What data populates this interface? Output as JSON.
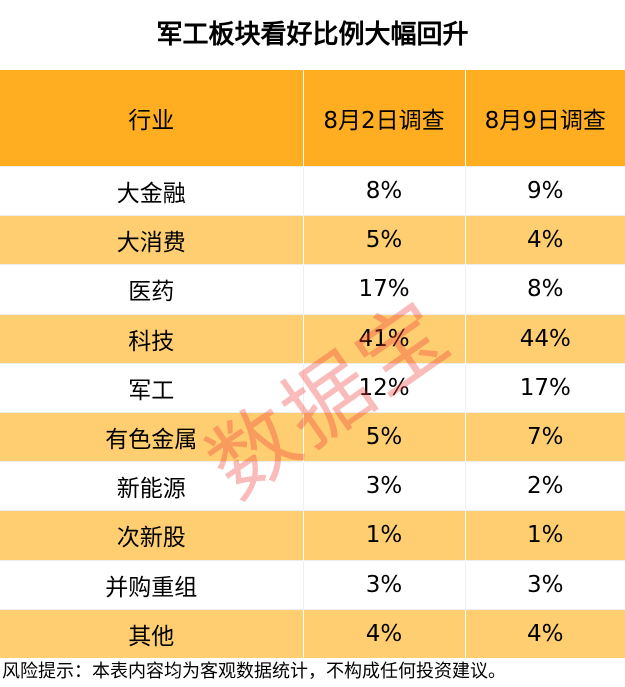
{
  "title": "军工板块看好比例大幅回升",
  "note": "风险提示：本表内容均为客观数据统计，不构成任何投资建议。",
  "watermark": "数据宝",
  "colors": {
    "header": "#FFAE21",
    "alt_row": "#FFCE70",
    "watermark": "#F03C3C"
  },
  "chart_data": {
    "type": "table",
    "title": "军工板块看好比例大幅回升",
    "columns": [
      "行业",
      "8月2日调查",
      "8月9日调查"
    ],
    "rows": [
      [
        "大金融",
        "8%",
        "9%"
      ],
      [
        "大消费",
        "5%",
        "4%"
      ],
      [
        "医药",
        "17%",
        "8%"
      ],
      [
        "科技",
        "41%",
        "44%"
      ],
      [
        "军工",
        "12%",
        "17%"
      ],
      [
        "有色金属",
        "5%",
        "7%"
      ],
      [
        "新能源",
        "3%",
        "2%"
      ],
      [
        "次新股",
        "1%",
        "1%"
      ],
      [
        "并购重组",
        "3%",
        "3%"
      ],
      [
        "其他",
        "4%",
        "4%"
      ]
    ]
  }
}
